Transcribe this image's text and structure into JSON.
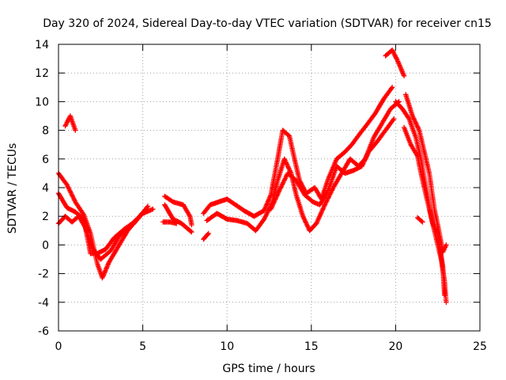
{
  "chart_data": {
    "type": "scatter",
    "title": "Day 320 of 2024, Sidereal Day-to-day VTEC variation (SDTVAR) for receiver cn15",
    "xlabel": "GPS time / hours",
    "ylabel": "SDTVAR / TECUs",
    "xlim": [
      0,
      25
    ],
    "ylim": [
      -6,
      14
    ],
    "xticks": [
      "0",
      "5",
      "10",
      "15",
      "20",
      "25"
    ],
    "yticks": [
      "-6",
      "-4",
      "-2",
      "0",
      "2",
      "4",
      "6",
      "8",
      "10",
      "12",
      "14"
    ],
    "grid": true,
    "marker": "+",
    "series": [
      {
        "name": "SDTVAR",
        "color": "#ff0000",
        "segments": [
          [
            [
              0,
              5.0
            ],
            [
              0.5,
              4.2
            ],
            [
              1.0,
              3.0
            ],
            [
              1.5,
              2.1
            ],
            [
              1.9,
              0.8
            ],
            [
              2.3,
              -1.3
            ],
            [
              2.6,
              -2.3
            ],
            [
              3.0,
              -1.2
            ],
            [
              3.6,
              0.0
            ],
            [
              4.1,
              1.0
            ],
            [
              4.7,
              1.8
            ],
            [
              5.3,
              2.7
            ]
          ],
          [
            [
              0,
              3.6
            ],
            [
              0.5,
              2.6
            ],
            [
              1.0,
              2.3
            ],
            [
              1.5,
              1.8
            ],
            [
              1.9,
              -0.6
            ],
            [
              2.3,
              -0.6
            ],
            [
              2.8,
              -0.3
            ],
            [
              3.3,
              0.5
            ],
            [
              3.9,
              1.1
            ],
            [
              4.5,
              1.6
            ],
            [
              5.1,
              2.4
            ]
          ],
          [
            [
              0,
              1.5
            ],
            [
              0.4,
              2.0
            ],
            [
              0.8,
              1.6
            ],
            [
              1.2,
              2.0
            ],
            [
              1.6,
              1.2
            ],
            [
              2.0,
              -0.2
            ],
            [
              2.5,
              -1.0
            ],
            [
              3.1,
              -0.4
            ],
            [
              3.6,
              0.6
            ],
            [
              4.3,
              1.4
            ],
            [
              5.0,
              2.2
            ],
            [
              5.6,
              2.5
            ]
          ],
          [
            [
              0.4,
              8.3
            ],
            [
              0.7,
              9.0
            ],
            [
              1.0,
              8.0
            ]
          ],
          [
            [
              6.3,
              3.4
            ],
            [
              6.8,
              3.0
            ],
            [
              7.4,
              2.8
            ],
            [
              7.8,
              2.0
            ],
            [
              7.9,
              1.4
            ]
          ],
          [
            [
              6.3,
              2.8
            ],
            [
              6.8,
              1.8
            ],
            [
              7.3,
              1.5
            ],
            [
              7.8,
              1.0
            ],
            [
              7.9,
              0.9
            ]
          ],
          [
            [
              6.2,
              1.6
            ],
            [
              6.6,
              1.6
            ],
            [
              7.0,
              1.5
            ]
          ],
          [
            [
              8.6,
              0.4
            ],
            [
              8.9,
              0.8
            ]
          ],
          [
            [
              8.6,
              2.2
            ],
            [
              9.0,
              2.8
            ],
            [
              9.5,
              3.0
            ],
            [
              10.0,
              3.2
            ],
            [
              10.5,
              2.8
            ],
            [
              11.0,
              2.4
            ],
            [
              11.6,
              2.0
            ],
            [
              12.2,
              2.4
            ],
            [
              12.6,
              3.5
            ],
            [
              13.0,
              6.0
            ],
            [
              13.3,
              8.0
            ],
            [
              13.7,
              7.6
            ],
            [
              14.0,
              6.0
            ],
            [
              14.3,
              4.5
            ],
            [
              14.7,
              3.6
            ],
            [
              15.2,
              4.0
            ],
            [
              15.6,
              3.2
            ],
            [
              16.0,
              4.6
            ],
            [
              16.5,
              6.0
            ],
            [
              17.0,
              6.5
            ],
            [
              17.4,
              7.0
            ],
            [
              17.9,
              7.8
            ],
            [
              18.3,
              8.4
            ],
            [
              18.8,
              9.2
            ],
            [
              19.3,
              10.2
            ],
            [
              19.8,
              11.0
            ]
          ],
          [
            [
              8.8,
              1.7
            ],
            [
              9.4,
              2.2
            ],
            [
              10.0,
              1.8
            ],
            [
              10.6,
              1.7
            ],
            [
              11.2,
              1.5
            ],
            [
              11.7,
              1.0
            ],
            [
              12.2,
              1.8
            ],
            [
              12.7,
              3.0
            ],
            [
              13.0,
              4.5
            ],
            [
              13.4,
              6.0
            ],
            [
              13.8,
              5.0
            ],
            [
              14.1,
              3.5
            ],
            [
              14.5,
              2.0
            ],
            [
              14.9,
              1.0
            ],
            [
              15.3,
              1.5
            ],
            [
              15.8,
              2.8
            ],
            [
              16.3,
              4.0
            ],
            [
              16.8,
              5.0
            ],
            [
              17.3,
              6.0
            ],
            [
              17.8,
              5.5
            ],
            [
              18.2,
              6.0
            ],
            [
              18.7,
              7.5
            ],
            [
              19.2,
              8.5
            ],
            [
              19.7,
              9.5
            ],
            [
              20.2,
              10.0
            ]
          ],
          [
            [
              12.6,
              2.5
            ],
            [
              13.1,
              3.8
            ],
            [
              13.6,
              5.0
            ],
            [
              14.1,
              4.5
            ],
            [
              14.6,
              3.5
            ],
            [
              15.1,
              3.0
            ],
            [
              15.5,
              2.8
            ],
            [
              16.0,
              3.8
            ],
            [
              16.5,
              5.5
            ],
            [
              17.0,
              5.0
            ],
            [
              17.5,
              5.2
            ],
            [
              18.0,
              5.5
            ],
            [
              18.4,
              6.5
            ],
            [
              18.9,
              7.2
            ],
            [
              19.4,
              8.0
            ],
            [
              19.9,
              8.8
            ]
          ],
          [
            [
              19.4,
              13.2
            ],
            [
              19.8,
              13.6
            ],
            [
              20.1,
              12.9
            ],
            [
              20.5,
              11.8
            ]
          ],
          [
            [
              20.0,
              10.0
            ],
            [
              20.4,
              9.5
            ],
            [
              20.8,
              8.8
            ],
            [
              21.2,
              7.5
            ],
            [
              21.5,
              6.0
            ],
            [
              21.8,
              4.0
            ],
            [
              22.1,
              2.0
            ],
            [
              22.4,
              0.5
            ],
            [
              22.7,
              -1.0
            ],
            [
              22.9,
              -2.5
            ],
            [
              23.0,
              -4.0
            ]
          ],
          [
            [
              20.6,
              10.5
            ],
            [
              21.0,
              9.0
            ],
            [
              21.4,
              8.0
            ],
            [
              21.7,
              6.5
            ],
            [
              22.0,
              5.0
            ],
            [
              22.3,
              2.5
            ],
            [
              22.6,
              0.8
            ],
            [
              22.8,
              -0.5
            ],
            [
              23.0,
              0.0
            ]
          ],
          [
            [
              20.5,
              8.2
            ],
            [
              20.9,
              7.0
            ],
            [
              21.3,
              6.2
            ],
            [
              21.6,
              4.5
            ],
            [
              21.9,
              3.0
            ],
            [
              22.2,
              1.5
            ],
            [
              22.5,
              0.8
            ],
            [
              22.8,
              -1.5
            ],
            [
              22.9,
              -3.5
            ]
          ],
          [
            [
              21.3,
              1.9
            ],
            [
              21.6,
              1.6
            ]
          ]
        ]
      }
    ]
  }
}
